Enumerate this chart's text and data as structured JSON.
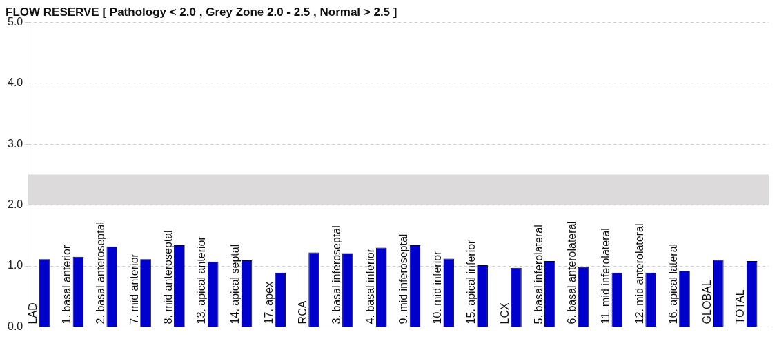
{
  "chart_data": {
    "type": "bar",
    "title": "FLOW RESERVE [ Pathology < 2.0 , Grey Zone 2.0 - 2.5 , Normal > 2.5 ]",
    "categories": [
      "LAD",
      "1. basal anterior",
      "2. basal anteroseptal",
      "7. mid anterior",
      "8. mid anteroseptal",
      "13. apical anterior",
      "14. apical septal",
      "17. apex",
      "RCA",
      "3. basal inferoseptal",
      "4. basal inferior",
      "9. mid inferoseptal",
      "10. mid inferior",
      "15. apical inferior",
      "LCX",
      "5. basal inferolateral",
      "6. basal anterolateral",
      "11. mid inferolateral",
      "12. mid anterolateral",
      "16. apical lateral",
      "GLOBAL",
      "TOTAL"
    ],
    "values": [
      1.11,
      1.15,
      1.32,
      1.11,
      1.34,
      1.07,
      1.09,
      0.89,
      1.22,
      1.21,
      1.3,
      1.34,
      1.12,
      1.01,
      0.97,
      1.08,
      0.98,
      0.89,
      0.89,
      0.92,
      1.1,
      1.08
    ],
    "color": "#0000cc",
    "ylim": [
      0,
      5
    ],
    "yticks": [
      {
        "value": 0,
        "label": "0.0"
      },
      {
        "value": 1,
        "label": "1.0"
      },
      {
        "value": 2,
        "label": "2.0"
      },
      {
        "value": 3,
        "label": "3.0"
      },
      {
        "value": 4,
        "label": "4.0"
      },
      {
        "value": 5,
        "label": "5.0"
      }
    ],
    "grid": "y",
    "line_style": "dashed",
    "legend": false,
    "bands": [
      {
        "axis": "y",
        "from": 2.0,
        "to": 2.5,
        "color": "#dcdada"
      }
    ]
  }
}
